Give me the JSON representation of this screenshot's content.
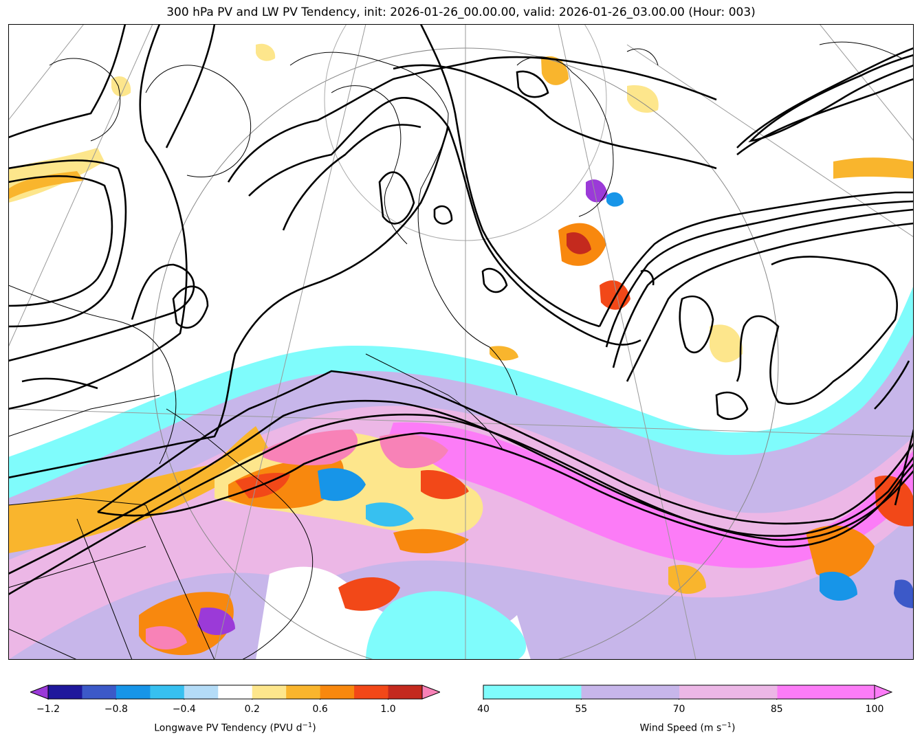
{
  "title": "300 hPa PV and LW PV Tendency, init: 2026-01-26_00.00.00, valid: 2026-01-26_03.00.00 (Hour: 003)",
  "colorbars": {
    "pv_tendency": {
      "label": "Longwave PV Tendency (PVU d",
      "label_sup": "−1",
      "label_end": ")",
      "ticks": [
        "−1.2",
        "−0.8",
        "−0.4",
        "0.2",
        "0.6",
        "1.0"
      ],
      "tick_values": [
        -1.2,
        -0.8,
        -0.4,
        0.2,
        0.6,
        1.0
      ],
      "levels": [
        -1.2,
        -1.0,
        -0.8,
        -0.6,
        -0.4,
        -0.2,
        0.2,
        0.4,
        0.6,
        0.8,
        1.0,
        1.2
      ],
      "colors": [
        "#1f189c",
        "#3c59c8",
        "#1795e8",
        "#37c0f0",
        "#b4dcf7",
        "#ffffff",
        "#fde68c",
        "#f9b52d",
        "#f8880e",
        "#f24818",
        "#c42a1e"
      ],
      "under_color": "#9b3ad8",
      "over_color": "#f882b7"
    },
    "wind_speed": {
      "label": "Wind Speed (m s",
      "label_sup": "−1",
      "label_end": ")",
      "ticks": [
        "40",
        "55",
        "70",
        "85",
        "100"
      ],
      "tick_values": [
        40,
        55,
        70,
        85,
        100
      ],
      "colors": [
        "#7ffcfc",
        "#c7b6ea",
        "#ecb7e6",
        "#fc7cf7"
      ],
      "over_color": "#fc7cf7"
    }
  }
}
